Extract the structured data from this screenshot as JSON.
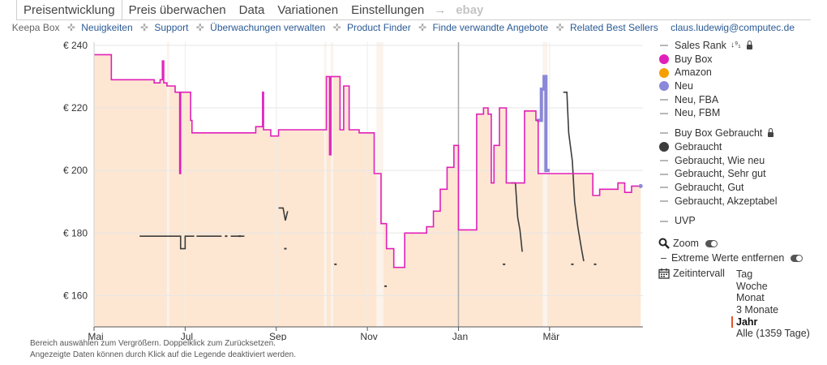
{
  "tabs": [
    {
      "label": "Preisentwicklung",
      "active": true
    },
    {
      "label": "Preis überwachen"
    },
    {
      "label": "Data"
    },
    {
      "label": "Variationen"
    },
    {
      "label": "Einstellungen"
    }
  ],
  "tab_arrow": "→",
  "tab_ebay": "ebay",
  "links": {
    "brand": "Keepa Box",
    "items": [
      "Neuigkeiten",
      "Support",
      "Überwachungen verwalten",
      "Product Finder",
      "Finde verwandte Angebote",
      "Related Best Sellers"
    ],
    "separator": "✜",
    "email": "claus.ludewig@computec.de"
  },
  "legend": [
    {
      "label": "Sales Rank",
      "symbol": "dash",
      "extra": "sort-lock"
    },
    {
      "label": "Buy Box",
      "symbol": "dot",
      "color": "#e020b8"
    },
    {
      "label": "Amazon",
      "symbol": "dot",
      "color": "#f5a000"
    },
    {
      "label": "Neu",
      "symbol": "dot",
      "color": "#8a88d8"
    },
    {
      "label": "Neu, FBA",
      "symbol": "dash"
    },
    {
      "label": "Neu, FBM",
      "symbol": "dash",
      "gap_after": true
    },
    {
      "label": "Buy Box Gebraucht",
      "symbol": "dash",
      "extra": "lock"
    },
    {
      "label": "Gebraucht",
      "symbol": "dot",
      "color": "#3c3c3c"
    },
    {
      "label": "Gebraucht, Wie neu",
      "symbol": "dash"
    },
    {
      "label": "Gebraucht, Sehr gut",
      "symbol": "dash"
    },
    {
      "label": "Gebraucht, Gut",
      "symbol": "dash"
    },
    {
      "label": "Gebraucht, Akzeptabel",
      "symbol": "dash",
      "gap_after": true
    },
    {
      "label": "UVP",
      "symbol": "dash"
    }
  ],
  "legend_sort_icon": "↓⁹₁",
  "options": {
    "zoom": "Zoom",
    "extreme": "Extreme Werte entfernen",
    "extreme_prefix": "–",
    "timerange": "Zeitintervall"
  },
  "ranges": [
    {
      "label": "Tag"
    },
    {
      "label": "Woche"
    },
    {
      "label": "Monat"
    },
    {
      "label": "3 Monate"
    },
    {
      "label": "Jahr",
      "active": true
    },
    {
      "label": "Alle (1359 Tage)"
    }
  ],
  "notes": [
    "Bereich auswählen zum Vergrößern. Doppelklick zum Zurücksetzen.",
    "Angezeigte Daten können durch Klick auf die Legende deaktiviert werden."
  ],
  "chart_data": {
    "type": "line",
    "x_unit": "month",
    "xlim": [
      4.0,
      16.05
    ],
    "ylim": [
      150,
      241
    ],
    "y_ticks": [
      160,
      180,
      200,
      220,
      240
    ],
    "y_tick_labels": [
      "€ 160",
      "€ 180",
      "€ 200",
      "€ 220",
      "€ 240"
    ],
    "x_ticks": [
      {
        "label": "Mai",
        "x": 4.0
      },
      {
        "label": "Jul",
        "x": 6.0
      },
      {
        "label": "Sep",
        "x": 8.0
      },
      {
        "label": "Nov",
        "x": 10.0
      },
      {
        "label": "Jan",
        "x": 12.0
      },
      {
        "label": "Mär",
        "x": 14.0
      }
    ],
    "year_marker_x": 12.0,
    "grid": true,
    "legend_position": "right",
    "colors": {
      "buybox": "#e020b8",
      "neu": "#8a88d8",
      "gebraucht": "#3c3c3c",
      "fill": "#fde7d3",
      "gap": "#fbf3ec"
    },
    "series": [
      {
        "name": "Buy Box",
        "step": true,
        "points": [
          [
            4.0,
            237
          ],
          [
            4.38,
            237
          ],
          [
            4.38,
            229
          ],
          [
            5.32,
            229
          ],
          [
            5.32,
            228
          ],
          [
            5.45,
            228
          ],
          [
            5.45,
            229
          ],
          [
            5.5,
            229
          ],
          [
            5.5,
            235
          ],
          [
            5.53,
            235
          ],
          [
            5.53,
            228
          ],
          [
            5.6,
            228
          ],
          [
            5.6,
            227
          ],
          [
            5.78,
            227
          ],
          [
            5.78,
            225
          ],
          [
            5.88,
            225
          ],
          [
            5.88,
            199
          ],
          [
            5.9,
            199
          ],
          [
            5.9,
            225
          ],
          [
            6.12,
            225
          ],
          [
            6.12,
            216
          ],
          [
            6.15,
            216
          ],
          [
            6.15,
            212
          ],
          [
            7.55,
            212
          ],
          [
            7.55,
            214
          ],
          [
            7.7,
            214
          ],
          [
            7.7,
            225
          ],
          [
            7.72,
            225
          ],
          [
            7.72,
            213
          ],
          [
            7.88,
            213
          ],
          [
            7.88,
            211
          ],
          [
            8.05,
            211
          ],
          [
            8.05,
            213
          ],
          [
            9.1,
            213
          ],
          [
            9.1,
            230
          ],
          [
            9.17,
            230
          ],
          [
            9.17,
            205
          ],
          [
            9.2,
            205
          ],
          [
            9.2,
            230
          ],
          [
            9.4,
            230
          ],
          [
            9.4,
            213
          ],
          [
            9.48,
            213
          ],
          [
            9.48,
            227
          ],
          [
            9.6,
            227
          ],
          [
            9.6,
            213
          ],
          [
            9.76,
            213
          ],
          [
            9.76,
            213
          ],
          [
            9.82,
            213
          ],
          [
            9.82,
            212
          ],
          [
            10.15,
            212
          ],
          [
            10.15,
            199
          ],
          [
            10.3,
            199
          ],
          [
            10.3,
            183
          ],
          [
            10.42,
            183
          ],
          [
            10.42,
            175
          ],
          [
            10.58,
            175
          ],
          [
            10.58,
            169
          ],
          [
            10.82,
            169
          ],
          [
            10.82,
            180
          ],
          [
            11.3,
            180
          ],
          [
            11.3,
            182
          ],
          [
            11.45,
            182
          ],
          [
            11.45,
            187
          ],
          [
            11.6,
            187
          ],
          [
            11.6,
            194
          ],
          [
            11.75,
            194
          ],
          [
            11.75,
            201
          ],
          [
            11.9,
            201
          ],
          [
            11.9,
            208
          ],
          [
            12.0,
            208
          ],
          [
            12.0,
            181
          ],
          [
            12.4,
            181
          ],
          [
            12.4,
            218
          ],
          [
            12.55,
            218
          ],
          [
            12.55,
            220
          ],
          [
            12.65,
            220
          ],
          [
            12.65,
            218
          ],
          [
            12.72,
            218
          ],
          [
            12.72,
            196
          ],
          [
            12.78,
            196
          ],
          [
            12.78,
            208
          ],
          [
            12.9,
            208
          ],
          [
            12.9,
            220
          ],
          [
            13.05,
            220
          ],
          [
            13.05,
            196
          ],
          [
            13.2,
            196
          ],
          [
            13.2,
            196
          ],
          [
            13.45,
            196
          ],
          [
            13.45,
            219
          ],
          [
            13.7,
            219
          ],
          [
            13.7,
            216
          ],
          [
            13.75,
            216
          ],
          [
            13.75,
            199
          ],
          [
            14.95,
            199
          ],
          [
            14.95,
            192
          ],
          [
            15.1,
            192
          ],
          [
            15.1,
            194
          ],
          [
            15.5,
            194
          ],
          [
            15.5,
            196
          ],
          [
            15.65,
            196
          ],
          [
            15.65,
            193
          ],
          [
            15.8,
            193
          ],
          [
            15.8,
            195
          ],
          [
            16.0,
            195
          ]
        ]
      },
      {
        "name": "Neu",
        "step": true,
        "points": [
          [
            13.72,
            216
          ],
          [
            13.82,
            216
          ],
          [
            13.82,
            226
          ],
          [
            13.88,
            226
          ],
          [
            13.88,
            230
          ],
          [
            13.92,
            230
          ],
          [
            13.92,
            200
          ],
          [
            14.0,
            200
          ]
        ]
      },
      {
        "name": "Gebraucht",
        "segments": [
          [
            [
              5.0,
              179
            ],
            [
              5.9,
              179
            ],
            [
              5.9,
              175
            ],
            [
              6.0,
              175
            ],
            [
              6.0,
              179
            ],
            [
              6.2,
              179
            ]
          ],
          [
            [
              6.25,
              179
            ],
            [
              6.8,
              179
            ]
          ],
          [
            [
              7.0,
              179
            ],
            [
              7.3,
              179
            ]
          ],
          [
            [
              8.05,
              188
            ],
            [
              8.15,
              188
            ],
            [
              8.2,
              184
            ],
            [
              8.25,
              187
            ]
          ],
          [
            [
              13.15,
              196
            ],
            [
              13.25,
              196
            ],
            [
              13.3,
              185
            ],
            [
              13.35,
              181
            ],
            [
              13.4,
              174
            ]
          ],
          [
            [
              14.3,
              225
            ],
            [
              14.38,
              225
            ],
            [
              14.42,
              212
            ],
            [
              14.5,
              203
            ],
            [
              14.55,
              190
            ],
            [
              14.62,
              182
            ],
            [
              14.7,
              175
            ],
            [
              14.75,
              171
            ]
          ]
        ],
        "points_scattered": [
          [
            6.9,
            179
          ],
          [
            7.2,
            179
          ],
          [
            8.2,
            175
          ],
          [
            9.3,
            170
          ],
          [
            10.4,
            163
          ],
          [
            13.0,
            170
          ],
          [
            14.5,
            170
          ],
          [
            15.0,
            170
          ]
        ]
      }
    ],
    "gaps_x": [
      [
        5.6,
        5.65
      ],
      [
        9.05,
        9.1
      ],
      [
        9.2,
        9.25
      ],
      [
        10.2,
        10.35
      ],
      [
        13.85,
        13.95
      ]
    ]
  }
}
